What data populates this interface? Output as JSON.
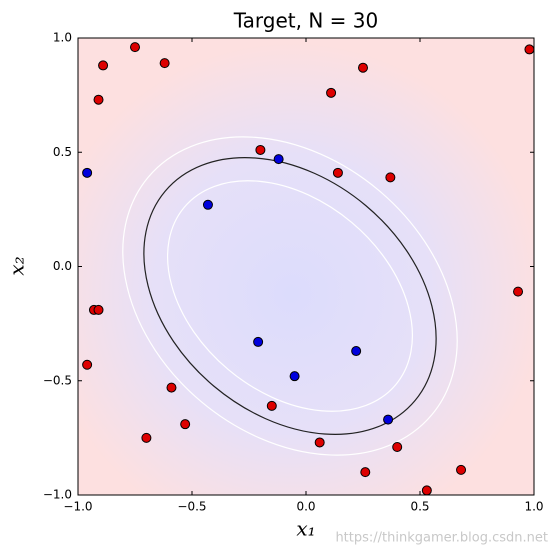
{
  "chart_data": {
    "type": "scatter",
    "title": "Target, N = 30",
    "xlabel": "x₁",
    "ylabel": "x₂",
    "watermark": "https://thinkgamer.blog.csdn.net",
    "xlim": [
      -1,
      1
    ],
    "ylim": [
      -1,
      1
    ],
    "xticks": [
      {
        "value": -1,
        "label": "−1.0"
      },
      {
        "value": -0.5,
        "label": "−0.5"
      },
      {
        "value": 0,
        "label": "0.0"
      },
      {
        "value": 0.5,
        "label": "0.5"
      },
      {
        "value": 1,
        "label": "1.0"
      }
    ],
    "yticks": [
      {
        "value": -1,
        "label": "−1.0"
      },
      {
        "value": -0.5,
        "label": "−0.5"
      },
      {
        "value": 0,
        "label": "0.0"
      },
      {
        "value": 0.5,
        "label": "0.5"
      },
      {
        "value": 1,
        "label": "1.0"
      }
    ],
    "series": [
      {
        "color": "#dd0000",
        "x": [
          -0.75,
          -0.89,
          -0.62,
          -0.91,
          0.25,
          0.11,
          0.98,
          -0.2,
          0.14,
          0.37,
          0.93,
          -0.93,
          -0.91,
          -0.96,
          -0.59,
          -0.15,
          -0.53,
          -0.7,
          0.06,
          0.4,
          0.26,
          0.68,
          0.53
        ],
        "values": [
          0.96,
          0.88,
          0.89,
          0.73,
          0.87,
          0.76,
          0.95,
          0.51,
          0.41,
          0.39,
          -0.11,
          -0.19,
          -0.19,
          -0.43,
          -0.53,
          -0.61,
          -0.69,
          -0.75,
          -0.77,
          -0.79,
          -0.9,
          -0.89,
          -0.98
        ]
      },
      {
        "color": "#0000dd",
        "x": [
          -0.96,
          -0.12,
          -0.43,
          -0.21,
          0.22,
          -0.05,
          0.36
        ],
        "values": [
          0.41,
          0.47,
          0.27,
          -0.33,
          -0.37,
          -0.48,
          -0.67
        ]
      }
    ]
  }
}
